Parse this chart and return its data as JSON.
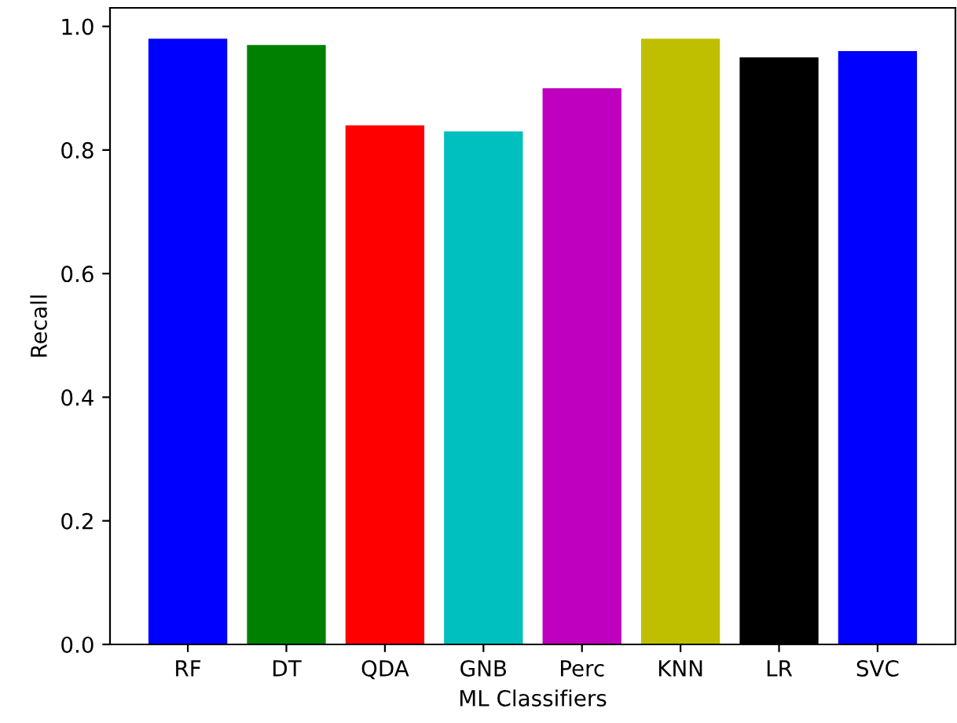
{
  "chart_data": {
    "type": "bar",
    "xlabel": "ML Classifiers",
    "ylabel": "Recall",
    "categories": [
      "RF",
      "DT",
      "QDA",
      "GNB",
      "Perc",
      "KNN",
      "LR",
      "SVC"
    ],
    "values": [
      0.98,
      0.97,
      0.84,
      0.83,
      0.9,
      0.98,
      0.95,
      0.96
    ],
    "colors": [
      "#0000ff",
      "#008000",
      "#ff0000",
      "#00bfbf",
      "#bf00bf",
      "#bfbf00",
      "#000000",
      "#0000ff"
    ],
    "ylim": [
      0,
      1.03
    ],
    "yticks": [
      {
        "value": 0,
        "label": "0.0"
      },
      {
        "value": 0.2,
        "label": "0.2"
      },
      {
        "value": 0.4,
        "label": "0.4"
      },
      {
        "value": 0.6,
        "label": "0.6"
      },
      {
        "value": 0.8,
        "label": "0.8"
      },
      {
        "value": 1,
        "label": "1.0"
      }
    ],
    "grid": false
  }
}
